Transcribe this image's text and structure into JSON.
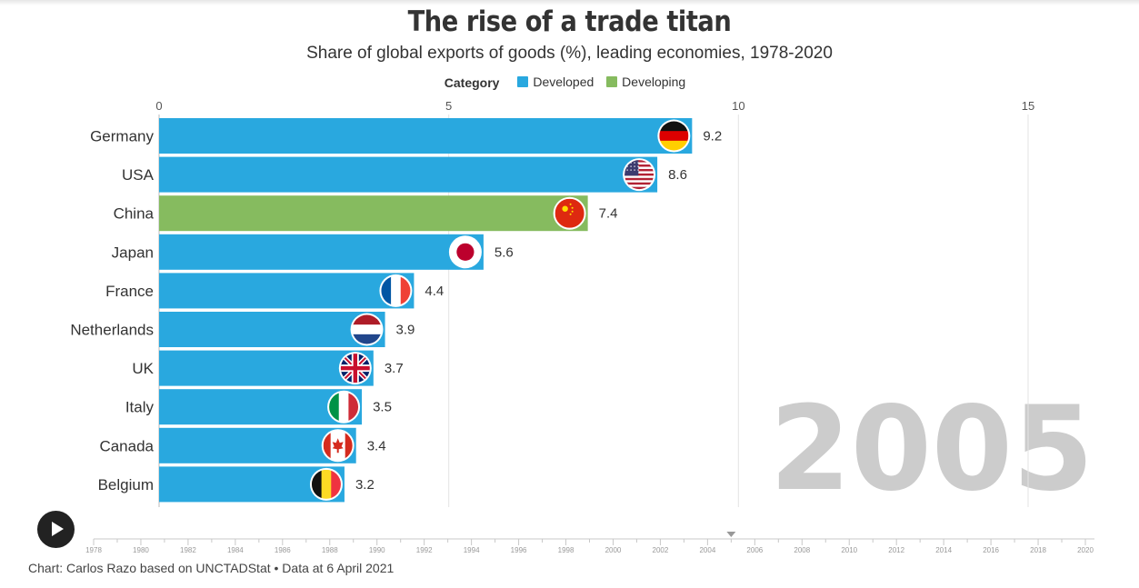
{
  "title": "The rise of a trade titan",
  "subtitle": "Share of global exports of goods (%), leading economies, 1978-2020",
  "legend": {
    "title": "Category",
    "items": [
      {
        "label": "Developed",
        "color": "#29a8df"
      },
      {
        "label": "Developing",
        "color": "#86bb5f"
      }
    ]
  },
  "current_year": "2005",
  "timeline": {
    "years": [
      "1978",
      "1980",
      "1982",
      "1984",
      "1986",
      "1988",
      "1990",
      "1992",
      "1994",
      "1996",
      "1998",
      "2000",
      "2002",
      "2004",
      "2006",
      "2008",
      "2010",
      "2012",
      "2014",
      "2016",
      "2018",
      "2020"
    ],
    "start": 1978,
    "end": 2020,
    "current": 2005
  },
  "footer": "Chart: Carlos Razo based on UNCTADStat • Data at 6 April 2021",
  "chart_data": {
    "type": "bar",
    "orientation": "horizontal",
    "xlim": [
      0,
      16.2
    ],
    "xticks": [
      0,
      5,
      10,
      15
    ],
    "xtick_labels": [
      "0",
      "5",
      "10",
      "15"
    ],
    "grid": true,
    "legend_position": "top-center",
    "categories": [
      "Germany",
      "USA",
      "China",
      "Japan",
      "France",
      "Netherlands",
      "UK",
      "Italy",
      "Canada",
      "Belgium"
    ],
    "values": [
      9.2,
      8.6,
      7.4,
      5.6,
      4.4,
      3.9,
      3.7,
      3.5,
      3.4,
      3.2
    ],
    "value_labels": [
      "9.2",
      "8.6",
      "7.4",
      "5.6",
      "4.4",
      "3.9",
      "3.7",
      "3.5",
      "3.4",
      "3.2"
    ],
    "category_group": [
      "Developed",
      "Developed",
      "Developing",
      "Developed",
      "Developed",
      "Developed",
      "Developed",
      "Developed",
      "Developed",
      "Developed"
    ],
    "flag_icons": [
      "germany-flag-icon",
      "usa-flag-icon",
      "china-flag-icon",
      "japan-flag-icon",
      "france-flag-icon",
      "netherlands-flag-icon",
      "uk-flag-icon",
      "italy-flag-icon",
      "canada-flag-icon",
      "belgium-flag-icon"
    ]
  }
}
